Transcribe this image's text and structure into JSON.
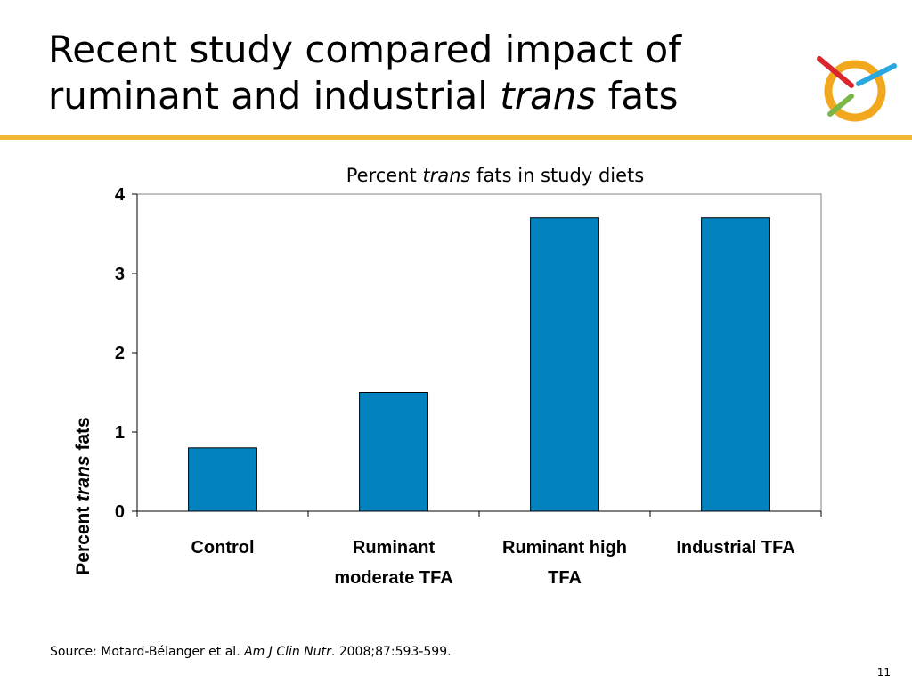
{
  "slide": {
    "title_part1": "Recent study compared impact of ruminant and industrial ",
    "title_italic": "trans",
    "title_part2": " fats",
    "source_prefix": "Source: Motard-Bélanger et al. ",
    "source_journal": "Am J Clin Nutr",
    "source_suffix": ". 2008;87:593-599.",
    "page_number": "11",
    "accent_color": "#f2b735"
  },
  "chart_data": {
    "type": "bar",
    "title_prefix": "Percent ",
    "title_italic": "trans",
    "title_suffix": " fats in study diets",
    "ylabel_prefix": "Percent ",
    "ylabel_italic": "trans",
    "ylabel_suffix": " fats",
    "categories": [
      [
        "Control"
      ],
      [
        "Ruminant",
        "moderate TFA"
      ],
      [
        "Ruminant high",
        "TFA"
      ],
      [
        "Industrial TFA"
      ]
    ],
    "values": [
      0.8,
      1.5,
      3.7,
      3.7
    ],
    "ylim": [
      0,
      4
    ],
    "yticks": [
      "0",
      "1",
      "2",
      "3",
      "4"
    ],
    "grid": false,
    "bar_color": "#0283c0"
  }
}
